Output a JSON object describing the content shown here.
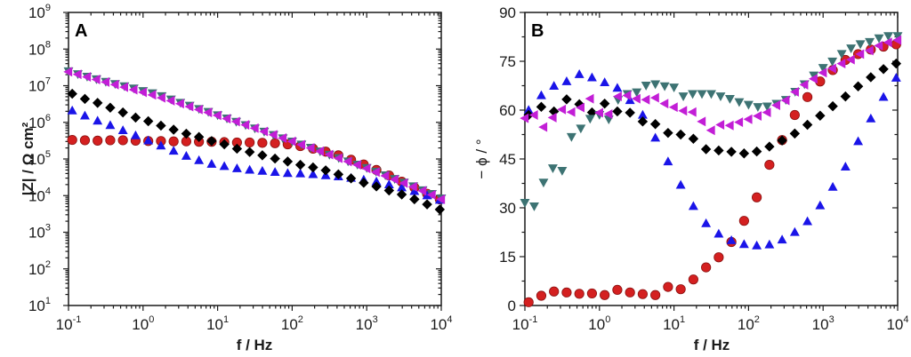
{
  "chart_data": [
    {
      "type": "scatter",
      "panel_label": "A",
      "title": "",
      "xlabel": "f / Hz",
      "ylabel": "|Z| / Ω cm²",
      "xscale": "log",
      "yscale": "log",
      "xlim": [
        0.1,
        10000
      ],
      "ylim": [
        10,
        1000000000
      ],
      "x_ticks": [
        {
          "base": "10",
          "exp": "-1"
        },
        {
          "base": "10",
          "exp": "0"
        },
        {
          "base": "10",
          "exp": "1"
        },
        {
          "base": "10",
          "exp": "2"
        },
        {
          "base": "10",
          "exp": "3"
        },
        {
          "base": "10",
          "exp": "4"
        }
      ],
      "y_ticks": [
        {
          "base": "10",
          "exp": "1"
        },
        {
          "base": "10",
          "exp": "2"
        },
        {
          "base": "10",
          "exp": "3"
        },
        {
          "base": "10",
          "exp": "4"
        },
        {
          "base": "10",
          "exp": "5"
        },
        {
          "base": "10",
          "exp": "6"
        },
        {
          "base": "10",
          "exp": "7"
        },
        {
          "base": "10",
          "exp": "8"
        },
        {
          "base": "10",
          "exp": "9"
        }
      ],
      "grid": false,
      "legend": "none",
      "series": [
        {
          "name": "red-circles",
          "marker": "circle",
          "color": "#d42020",
          "x_log_start": -0.95,
          "x_log_step": 0.17,
          "log_values": [
            5.52,
            5.51,
            5.5,
            5.51,
            5.51,
            5.5,
            5.49,
            5.49,
            5.48,
            5.48,
            5.47,
            5.47,
            5.46,
            5.45,
            5.45,
            5.44,
            5.43,
            5.4,
            5.35,
            5.28,
            5.2,
            5.1,
            4.98,
            4.85,
            4.7,
            4.55,
            4.38,
            4.22,
            4.05,
            3.9
          ]
        },
        {
          "name": "black-diamonds",
          "marker": "diamond",
          "color": "#000000",
          "x_log_start": -0.95,
          "x_log_step": 0.17,
          "log_values": [
            6.78,
            6.64,
            6.53,
            6.4,
            6.27,
            6.13,
            6.03,
            5.91,
            5.8,
            5.69,
            5.6,
            5.49,
            5.4,
            5.28,
            5.19,
            5.1,
            5.01,
            4.93,
            4.84,
            4.77,
            4.69,
            4.58,
            4.47,
            4.35,
            4.25,
            4.14,
            4.03,
            3.9,
            3.76,
            3.62
          ]
        },
        {
          "name": "blue-triangles-up",
          "marker": "triangle-up",
          "color": "#1a14e8",
          "x_log_start": -0.95,
          "x_log_step": 0.17,
          "log_values": [
            6.32,
            6.18,
            6.04,
            5.92,
            5.78,
            5.64,
            5.5,
            5.36,
            5.22,
            5.08,
            4.96,
            4.86,
            4.8,
            4.74,
            4.7,
            4.67,
            4.64,
            4.61,
            4.6,
            4.58,
            4.55,
            4.52,
            4.48,
            4.43,
            4.38,
            4.3,
            4.22,
            4.12,
            4.0,
            3.88
          ]
        },
        {
          "name": "teal-triangles-down",
          "marker": "triangle-down",
          "color": "#3d7373",
          "x_log_start": -1.0,
          "x_log_step": 0.125,
          "log_values": [
            7.4,
            7.32,
            7.25,
            7.18,
            7.11,
            7.05,
            6.99,
            6.93,
            6.86,
            6.8,
            6.72,
            6.63,
            6.54,
            6.46,
            6.37,
            6.29,
            6.2,
            6.11,
            6.02,
            5.93,
            5.84,
            5.75,
            5.66,
            5.57,
            5.48,
            5.4,
            5.31,
            5.21,
            5.12,
            5.03,
            4.94,
            4.85,
            4.76,
            4.66,
            4.56,
            4.46,
            4.36,
            4.26,
            4.15,
            4.05,
            3.93
          ]
        },
        {
          "name": "magenta-triangles-left",
          "marker": "triangle-left",
          "color": "#c21ed6",
          "x_log_start": -1.0,
          "x_log_step": 0.125,
          "log_values": [
            7.38,
            7.31,
            7.24,
            7.17,
            7.1,
            7.03,
            6.96,
            6.89,
            6.82,
            6.75,
            6.67,
            6.59,
            6.51,
            6.43,
            6.35,
            6.27,
            6.19,
            6.1,
            6.02,
            5.93,
            5.84,
            5.75,
            5.66,
            5.57,
            5.48,
            5.39,
            5.3,
            5.21,
            5.12,
            5.02,
            4.93,
            4.84,
            4.74,
            4.64,
            4.54,
            4.44,
            4.34,
            4.24,
            4.13,
            4.02,
            3.9
          ]
        }
      ]
    },
    {
      "type": "scatter",
      "panel_label": "B",
      "title": "",
      "xlabel": "f / Hz",
      "ylabel": "− ϕ / °",
      "xscale": "log",
      "yscale": "linear",
      "xlim": [
        0.1,
        10000
      ],
      "ylim": [
        0,
        90
      ],
      "x_ticks": [
        {
          "base": "10",
          "exp": "-1"
        },
        {
          "base": "10",
          "exp": "0"
        },
        {
          "base": "10",
          "exp": "1"
        },
        {
          "base": "10",
          "exp": "2"
        },
        {
          "base": "10",
          "exp": "3"
        },
        {
          "base": "10",
          "exp": "4"
        }
      ],
      "y_ticks": [
        "0",
        "15",
        "30",
        "45",
        "60",
        "75",
        "90"
      ],
      "grid": false,
      "legend": "none",
      "series": [
        {
          "name": "red-circles",
          "marker": "circle",
          "color": "#d42020",
          "x_log_start": -0.95,
          "x_log_step": 0.17,
          "values": [
            1,
            3,
            4.3,
            4,
            3.6,
            3.7,
            3.2,
            4.8,
            4,
            3.5,
            3.2,
            5.7,
            5,
            8,
            11.7,
            14.8,
            19.5,
            26,
            33.2,
            43.2,
            50.8,
            58.5,
            64,
            68.8,
            72.3,
            75.4,
            77.2,
            78.6,
            79.5,
            80.2
          ]
        },
        {
          "name": "black-diamonds",
          "marker": "diamond",
          "color": "#000000",
          "x_log_start": -0.95,
          "x_log_step": 0.17,
          "values": [
            58.5,
            61,
            59.6,
            63.3,
            61.8,
            59.3,
            62,
            59.6,
            59.2,
            56.5,
            55.7,
            53,
            52.5,
            51.2,
            48,
            47.6,
            47.2,
            46.7,
            47.3,
            48.8,
            50.7,
            52.8,
            55.5,
            58.3,
            61.2,
            64.2,
            67.3,
            70.1,
            72.6,
            74.3
          ]
        },
        {
          "name": "blue-triangles-up",
          "marker": "triangle-up",
          "color": "#1a14e8",
          "x_log_start": -0.95,
          "x_log_step": 0.17,
          "values": [
            60,
            64.5,
            67.4,
            68.8,
            71,
            70,
            68.5,
            66.8,
            63,
            58.5,
            51.5,
            44.2,
            37,
            30.5,
            25.2,
            22,
            20,
            18.8,
            18.4,
            18.7,
            20.2,
            22.5,
            25.8,
            30.7,
            36.4,
            42.6,
            50.4,
            57.4,
            64,
            69.9
          ]
        },
        {
          "name": "teal-triangles-down",
          "marker": "triangle-down",
          "color": "#3d7373",
          "x_log_start": -1.0,
          "x_log_step": 0.125,
          "values": [
            31.6,
            30.5,
            37.8,
            42.2,
            41.4,
            51.8,
            54.4,
            57.4,
            58.6,
            57.2,
            63.2,
            65,
            65.5,
            67.6,
            68,
            67.4,
            67,
            64.3,
            65,
            65,
            65,
            64.3,
            63.5,
            62.5,
            61.7,
            61,
            61.2,
            62,
            63.2,
            65.7,
            68,
            70.7,
            73,
            75,
            77.3,
            79,
            80.3,
            81,
            82.1,
            82.8,
            82.8
          ]
        },
        {
          "name": "magenta-triangles-left",
          "marker": "triangle-left",
          "color": "#c21ed6",
          "x_log_start": -1.0,
          "x_log_step": 0.125,
          "values": [
            57.5,
            58.5,
            54.8,
            57.7,
            60.2,
            59.4,
            60.8,
            63.5,
            59.2,
            58.8,
            64.2,
            64.5,
            63.5,
            63.2,
            63.8,
            62,
            60.9,
            59.8,
            59.4,
            56.5,
            53.8,
            55.5,
            55.3,
            56.3,
            57.2,
            58.2,
            59.3,
            61.5,
            63,
            65.6,
            67.8,
            69.6,
            71.5,
            72.8,
            74.3,
            75.5,
            77.2,
            78.3,
            79.8,
            80.8,
            81.5
          ]
        }
      ]
    }
  ]
}
